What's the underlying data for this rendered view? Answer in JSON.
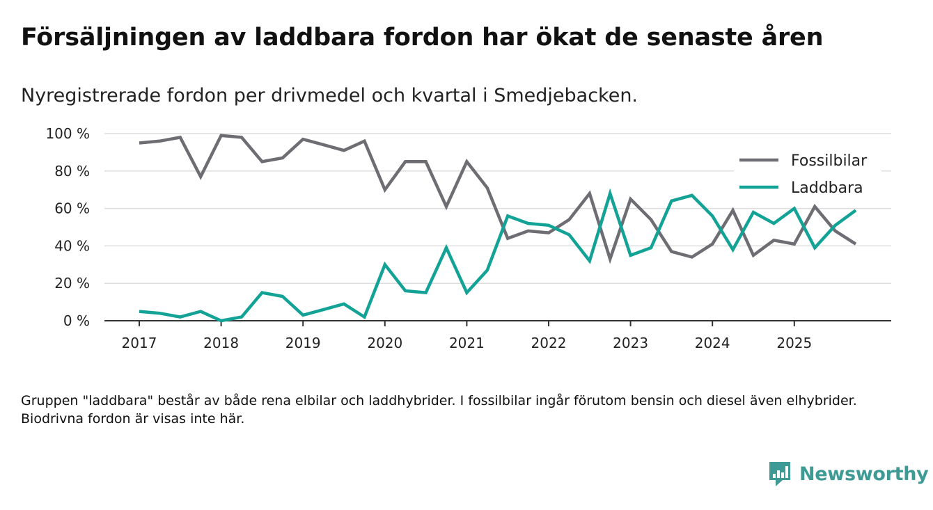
{
  "title": "Försäljningen av laddbara fordon har ökat de senaste åren",
  "subtitle": "Nyregistrerade fordon per drivmedel och kvartal i Smedjebacken.",
  "note": "Gruppen \"laddbara\" består av både rena elbilar och laddhybrider. I fossilbilar ingår förutom bensin och diesel även elhybrider. Biodrivna fordon är visas inte här.",
  "brand": {
    "name": "Newsworthy",
    "color": "#3d9a94"
  },
  "chart_data": {
    "type": "line",
    "title": "Försäljningen av laddbara fordon har ökat de senaste åren",
    "subtitle": "Nyregistrerade fordon per drivmedel och kvartal i Smedjebacken.",
    "xlabel": "",
    "ylabel": "",
    "ylim": [
      0,
      100
    ],
    "y_ticks": [
      0,
      20,
      40,
      60,
      80,
      100
    ],
    "y_tick_suffix": " %",
    "x_ticks": [
      "2017",
      "2018",
      "2019",
      "2020",
      "2021",
      "2022",
      "2023",
      "2024",
      "2025"
    ],
    "grid": true,
    "legend_position": "top-right",
    "x": [
      "2017 Q1",
      "2017 Q2",
      "2017 Q3",
      "2017 Q4",
      "2018 Q1",
      "2018 Q2",
      "2018 Q3",
      "2018 Q4",
      "2019 Q1",
      "2019 Q2",
      "2019 Q3",
      "2019 Q4",
      "2020 Q1",
      "2020 Q2",
      "2020 Q3",
      "2020 Q4",
      "2021 Q1",
      "2021 Q2",
      "2021 Q3",
      "2021 Q4",
      "2022 Q1",
      "2022 Q2",
      "2022 Q3",
      "2022 Q4",
      "2023 Q1",
      "2023 Q2",
      "2023 Q3",
      "2023 Q4",
      "2024 Q1",
      "2024 Q2",
      "2024 Q3",
      "2024 Q4",
      "2025 Q1",
      "2025 Q2",
      "2025 Q3",
      "2025 Q4"
    ],
    "series": [
      {
        "name": "Fossilbilar",
        "color": "#6e6d74",
        "values": [
          95,
          96,
          98,
          77,
          99,
          98,
          85,
          87,
          97,
          94,
          91,
          96,
          70,
          85,
          85,
          61,
          85,
          71,
          44,
          48,
          47,
          54,
          68,
          33,
          65,
          54,
          37,
          34,
          41,
          59,
          35,
          43,
          41,
          61,
          48,
          41
        ]
      },
      {
        "name": "Laddbara",
        "color": "#12a396",
        "values": [
          5,
          4,
          2,
          5,
          0,
          2,
          15,
          13,
          3,
          6,
          9,
          2,
          30,
          16,
          15,
          39,
          15,
          27,
          56,
          52,
          51,
          46,
          32,
          68,
          35,
          39,
          64,
          67,
          56,
          38,
          58,
          52,
          60,
          39,
          51,
          59
        ]
      }
    ]
  }
}
